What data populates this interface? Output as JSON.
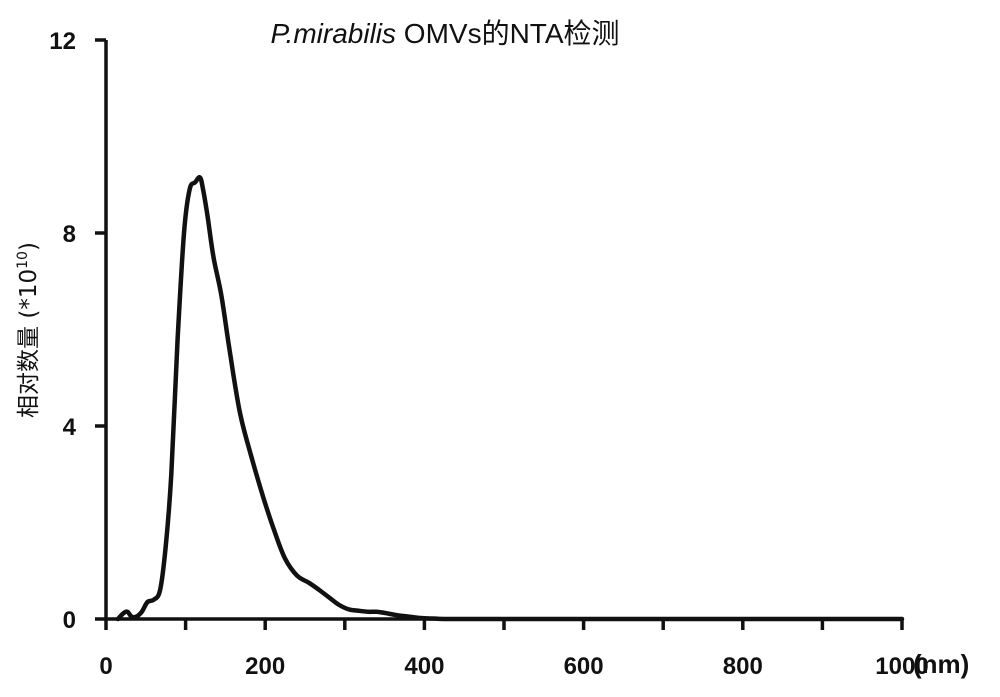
{
  "chart_data": {
    "type": "line",
    "title_italic": "P.mirabilis",
    "title_rest": " OMVs的NTA检测",
    "ylabel_main": "相对数量 (*10",
    "ylabel_sup": "10",
    "ylabel_close": ")",
    "xunit": "(nm)",
    "xlim": [
      0,
      1000
    ],
    "ylim": [
      0,
      12
    ],
    "x_ticks": [
      0,
      100,
      200,
      300,
      400,
      500,
      600,
      700,
      800,
      900,
      1000
    ],
    "x_tick_labels": [
      {
        "value": 0,
        "label": "0"
      },
      {
        "value": 200,
        "label": "200"
      },
      {
        "value": 400,
        "label": "400"
      },
      {
        "value": 600,
        "label": "600"
      },
      {
        "value": 800,
        "label": "800"
      },
      {
        "value": 1000,
        "label": "1000"
      }
    ],
    "y_ticks": [
      {
        "value": 0,
        "label": "0"
      },
      {
        "value": 4,
        "label": "4"
      },
      {
        "value": 8,
        "label": "8"
      },
      {
        "value": 12,
        "label": "12"
      }
    ],
    "series": [
      {
        "x": [
          15,
          22,
          27,
          32,
          38,
          45,
          52,
          60,
          68,
          75,
          82,
          90,
          98,
          105,
          112,
          118,
          122,
          128,
          135,
          145,
          155,
          168,
          182,
          198,
          212,
          225,
          240,
          255,
          268,
          280,
          292,
          305,
          318,
          330,
          340,
          352,
          365,
          380,
          395,
          410,
          425,
          440,
          460,
          500,
          600,
          700,
          800,
          900,
          1000
        ],
        "y": [
          0.0,
          0.12,
          0.15,
          0.05,
          0.05,
          0.15,
          0.35,
          0.4,
          0.6,
          1.5,
          3.0,
          5.8,
          8.0,
          8.9,
          9.05,
          9.15,
          8.9,
          8.3,
          7.5,
          6.7,
          5.6,
          4.3,
          3.4,
          2.5,
          1.8,
          1.25,
          0.9,
          0.75,
          0.6,
          0.45,
          0.3,
          0.2,
          0.17,
          0.15,
          0.15,
          0.12,
          0.08,
          0.05,
          0.02,
          0.01,
          0.0,
          0.0,
          0.0,
          0.0,
          0.0,
          0.0,
          0.0,
          0.0,
          0.0
        ]
      }
    ]
  }
}
